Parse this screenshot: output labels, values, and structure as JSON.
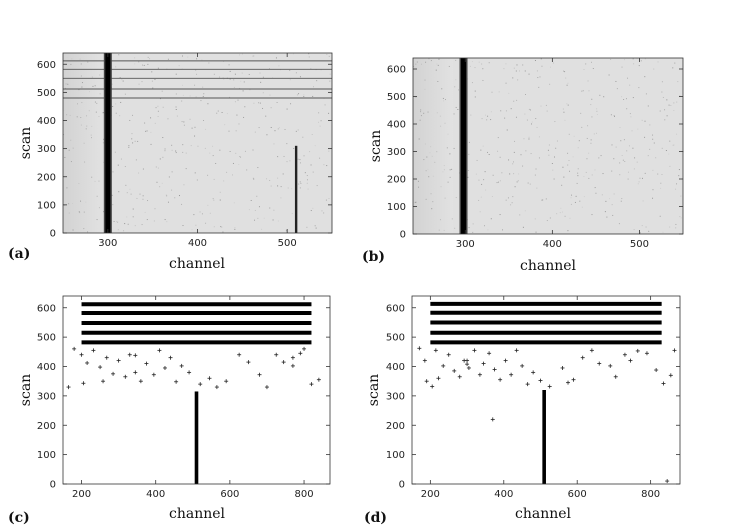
{
  "chart_data": [
    {
      "panel": "(a)",
      "type": "heatmap",
      "xlabel": "channel",
      "ylabel": "scan",
      "xlim": [
        250,
        550
      ],
      "ylim": [
        0,
        640
      ],
      "xticks": [
        300,
        400,
        500
      ],
      "yticks": [
        0,
        100,
        200,
        300,
        400,
        500,
        600
      ],
      "background": "#e0e0e0",
      "features": {
        "bright_column": {
          "channel": 300,
          "from_scan": 0,
          "to_scan": 640
        },
        "partial_column": {
          "channel": 510,
          "from_scan": 0,
          "to_scan": 310
        },
        "horizontal_lines": [
          480,
          512,
          550,
          582,
          612
        ]
      }
    },
    {
      "panel": "(b)",
      "type": "heatmap",
      "xlabel": "channel",
      "ylabel": "scan",
      "xlim": [
        240,
        550
      ],
      "ylim": [
        0,
        640
      ],
      "xticks": [
        300,
        400,
        500
      ],
      "yticks": [
        0,
        100,
        200,
        300,
        400,
        500,
        600
      ],
      "background": "#e0e0e0",
      "features": {
        "bright_column": {
          "channel": 298,
          "from_scan": 0,
          "to_scan": 640
        }
      }
    },
    {
      "panel": "(c)",
      "type": "scatter",
      "xlabel": "channel",
      "ylabel": "scan",
      "xlim": [
        150,
        870
      ],
      "ylim": [
        0,
        640
      ],
      "xticks": [
        200,
        400,
        600,
        800
      ],
      "yticks": [
        0,
        100,
        200,
        300,
        400,
        500,
        600
      ],
      "bands": [
        {
          "scan": 482,
          "from_channel": 200,
          "to_channel": 820
        },
        {
          "scan": 515,
          "from_channel": 200,
          "to_channel": 820
        },
        {
          "scan": 548,
          "from_channel": 200,
          "to_channel": 820
        },
        {
          "scan": 582,
          "from_channel": 200,
          "to_channel": 820
        },
        {
          "scan": 612,
          "from_channel": 200,
          "to_channel": 820
        }
      ],
      "column": {
        "channel": 510,
        "from_scan": 0,
        "to_scan": 315
      },
      "points": [
        [
          180,
          460
        ],
        [
          200,
          440
        ],
        [
          215,
          412
        ],
        [
          232,
          455
        ],
        [
          250,
          398
        ],
        [
          268,
          430
        ],
        [
          285,
          375
        ],
        [
          300,
          420
        ],
        [
          318,
          365
        ],
        [
          330,
          440
        ],
        [
          345,
          380
        ],
        [
          360,
          350
        ],
        [
          375,
          410
        ],
        [
          395,
          372
        ],
        [
          410,
          455
        ],
        [
          425,
          395
        ],
        [
          440,
          430
        ],
        [
          455,
          348
        ],
        [
          470,
          402
        ],
        [
          490,
          380
        ],
        [
          520,
          340
        ],
        [
          545,
          360
        ],
        [
          565,
          330
        ],
        [
          590,
          350
        ],
        [
          625,
          440
        ],
        [
          650,
          415
        ],
        [
          680,
          372
        ],
        [
          700,
          330
        ],
        [
          725,
          440
        ],
        [
          745,
          415
        ],
        [
          770,
          402
        ],
        [
          800,
          460
        ],
        [
          820,
          340
        ],
        [
          840,
          355
        ],
        [
          165,
          330
        ],
        [
          205,
          343
        ],
        [
          258,
          350
        ],
        [
          345,
          438
        ],
        [
          770,
          430
        ],
        [
          790,
          445
        ]
      ]
    },
    {
      "panel": "(d)",
      "type": "scatter",
      "xlabel": "channel",
      "ylabel": "scan",
      "xlim": [
        150,
        880
      ],
      "ylim": [
        0,
        640
      ],
      "xticks": [
        200,
        400,
        600,
        800
      ],
      "yticks": [
        0,
        100,
        200,
        300,
        400,
        500,
        600
      ],
      "bands": [
        {
          "scan": 482,
          "from_channel": 200,
          "to_channel": 830
        },
        {
          "scan": 515,
          "from_channel": 200,
          "to_channel": 830
        },
        {
          "scan": 550,
          "from_channel": 200,
          "to_channel": 830
        },
        {
          "scan": 583,
          "from_channel": 200,
          "to_channel": 830
        },
        {
          "scan": 613,
          "from_channel": 200,
          "to_channel": 830
        }
      ],
      "column": {
        "channel": 510,
        "from_scan": 0,
        "to_scan": 320
      },
      "points": [
        [
          170,
          462
        ],
        [
          185,
          420
        ],
        [
          205,
          332
        ],
        [
          215,
          455
        ],
        [
          235,
          402
        ],
        [
          250,
          440
        ],
        [
          265,
          385
        ],
        [
          280,
          365
        ],
        [
          292,
          420
        ],
        [
          305,
          395
        ],
        [
          320,
          455
        ],
        [
          335,
          372
        ],
        [
          345,
          410
        ],
        [
          360,
          445
        ],
        [
          375,
          390
        ],
        [
          390,
          355
        ],
        [
          405,
          420
        ],
        [
          420,
          372
        ],
        [
          435,
          455
        ],
        [
          450,
          402
        ],
        [
          465,
          340
        ],
        [
          480,
          380
        ],
        [
          500,
          352
        ],
        [
          525,
          332
        ],
        [
          560,
          395
        ],
        [
          590,
          355
        ],
        [
          615,
          430
        ],
        [
          640,
          455
        ],
        [
          660,
          410
        ],
        [
          690,
          402
        ],
        [
          705,
          365
        ],
        [
          730,
          440
        ],
        [
          745,
          420
        ],
        [
          765,
          453
        ],
        [
          790,
          445
        ],
        [
          815,
          388
        ],
        [
          835,
          342
        ],
        [
          855,
          370
        ],
        [
          865,
          455
        ],
        [
          370,
          220
        ],
        [
          845,
          10
        ],
        [
          300,
          420
        ],
        [
          300,
          408
        ],
        [
          190,
          350
        ],
        [
          222,
          360
        ],
        [
          575,
          345
        ]
      ]
    }
  ]
}
